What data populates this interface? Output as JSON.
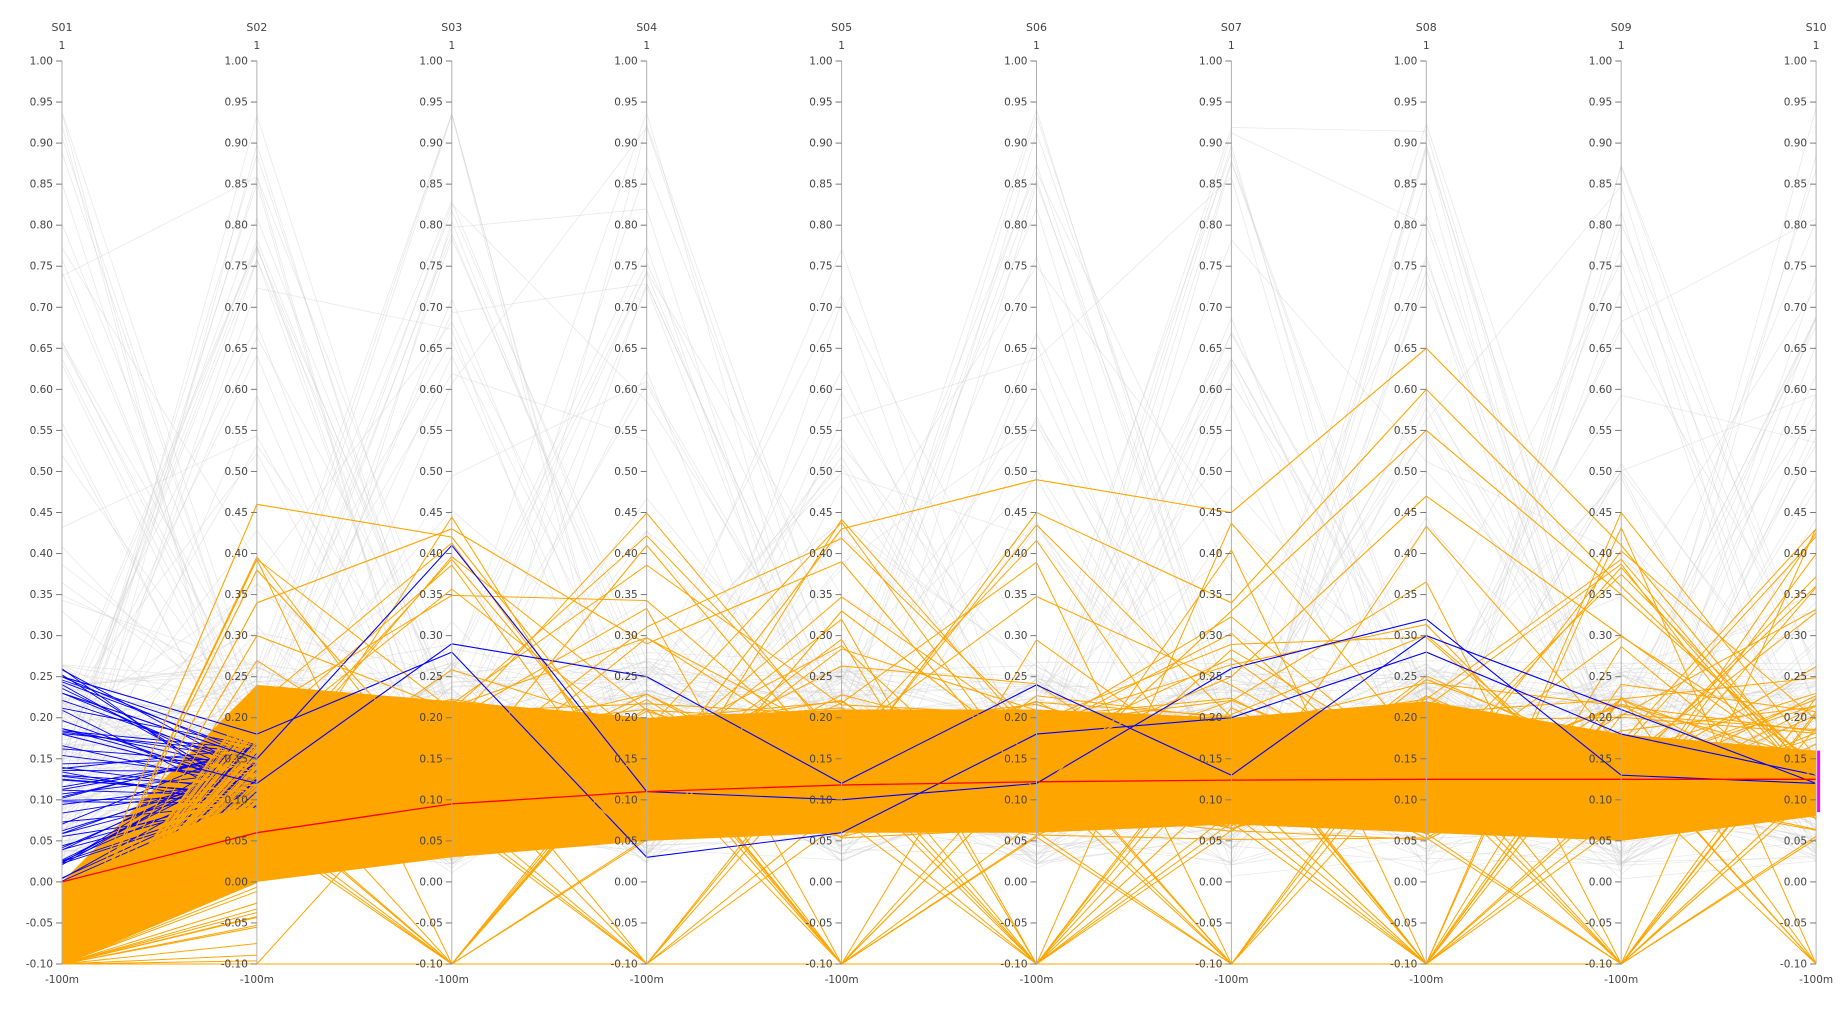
{
  "chart_data": {
    "type": "parallel-coordinates",
    "axes": [
      "S01",
      "S02",
      "S03",
      "S04",
      "S05",
      "S06",
      "S07",
      "S08",
      "S09",
      "S10"
    ],
    "axis_top_label": "1",
    "axis_bottom_label": "-100m",
    "ylim": [
      -0.1,
      1.0
    ],
    "ticks": [
      "1.00",
      "0.95",
      "0.90",
      "0.85",
      "0.80",
      "0.75",
      "0.70",
      "0.65",
      "0.60",
      "0.55",
      "0.50",
      "0.45",
      "0.40",
      "0.35",
      "0.30",
      "0.25",
      "0.20",
      "0.15",
      "0.10",
      "0.05",
      "0.00",
      "-0.05",
      "-0.10"
    ],
    "tick_values": [
      1.0,
      0.95,
      0.9,
      0.85,
      0.8,
      0.75,
      0.7,
      0.65,
      0.6,
      0.55,
      0.5,
      0.45,
      0.4,
      0.35,
      0.3,
      0.25,
      0.2,
      0.15,
      0.1,
      0.05,
      0.0,
      -0.05,
      -0.1
    ],
    "colors": {
      "background_lines": "#cfcfcf",
      "selected_lines": "#ffa500",
      "s01_highlight_lines": "#0000ff",
      "mean_line": "#ff0000",
      "brush": "#ff00ff",
      "axis": "#b0b0b0"
    },
    "mean_series": [
      0.0,
      0.06,
      0.095,
      0.11,
      0.118,
      0.122,
      0.124,
      0.125,
      0.125,
      0.125
    ],
    "band_upper": [
      0.0,
      0.24,
      0.22,
      0.2,
      0.21,
      0.21,
      0.2,
      0.22,
      0.18,
      0.16
    ],
    "band_lower": [
      -0.1,
      0.0,
      0.03,
      0.05,
      0.06,
      0.06,
      0.07,
      0.06,
      0.05,
      0.08
    ],
    "brush_range_s10": [
      0.085,
      0.16
    ],
    "highlight_lines": [
      {
        "color": "blue",
        "values": [
          0.23,
          0.15,
          0.41,
          0.11,
          0.1,
          0.12,
          0.26,
          0.32,
          0.13,
          0.12
        ]
      },
      {
        "color": "blue",
        "values": [
          0.18,
          0.12,
          0.29,
          0.25,
          0.12,
          0.24,
          0.13,
          0.3,
          0.21,
          0.12
        ]
      },
      {
        "color": "blue",
        "values": [
          0.25,
          0.18,
          0.28,
          0.03,
          0.06,
          0.18,
          0.2,
          0.28,
          0.18,
          0.13
        ]
      },
      {
        "color": "orange",
        "values": [
          -0.1,
          0.46,
          0.42,
          0.12,
          0.43,
          0.49,
          0.45,
          0.65,
          0.41,
          0.12
        ]
      },
      {
        "color": "orange",
        "values": [
          -0.1,
          0.38,
          0.12,
          0.41,
          0.13,
          0.45,
          0.34,
          0.6,
          0.36,
          0.13
        ]
      },
      {
        "color": "orange",
        "values": [
          -0.1,
          0.34,
          0.43,
          0.29,
          0.39,
          0.11,
          0.33,
          0.55,
          0.35,
          0.14
        ]
      },
      {
        "color": "orange",
        "values": [
          -0.1,
          -0.1,
          -0.1,
          -0.1,
          -0.1,
          -0.1,
          -0.1,
          -0.1,
          -0.1,
          0.12
        ]
      },
      {
        "color": "orange",
        "values": [
          -0.1,
          0.3,
          0.21,
          0.05,
          0.33,
          0.15,
          0.25,
          0.47,
          0.3,
          0.13
        ]
      },
      {
        "color": "orange",
        "values": [
          -0.1,
          0.1,
          -0.1,
          0.17,
          -0.1,
          -0.1,
          0.12,
          -0.1,
          -0.1,
          0.11
        ]
      }
    ]
  }
}
